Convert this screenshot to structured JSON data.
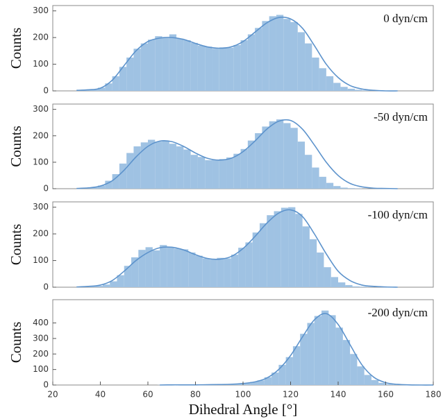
{
  "chart_data": [
    {
      "type": "histogram",
      "annotation": "0 dyn/cm",
      "ylabel": "Counts",
      "xlim": [
        20,
        180
      ],
      "ylim": [
        0,
        320
      ],
      "yticks": [
        0,
        100,
        200,
        300
      ],
      "bar_color": "#9fc2e3",
      "line_color": "#5d93cc",
      "bins": [
        30,
        33,
        36,
        39,
        42,
        45,
        48,
        51,
        54,
        57,
        60,
        63,
        66,
        69,
        72,
        75,
        78,
        81,
        84,
        87,
        90,
        93,
        96,
        99,
        102,
        105,
        108,
        111,
        114,
        117,
        120,
        123,
        126,
        129,
        132,
        135,
        138,
        141,
        144,
        147,
        150,
        153,
        156,
        159,
        162,
        165
      ],
      "counts": [
        2,
        4,
        6,
        12,
        28,
        55,
        90,
        125,
        158,
        178,
        192,
        205,
        198,
        212,
        196,
        190,
        180,
        170,
        166,
        158,
        163,
        162,
        172,
        190,
        212,
        236,
        262,
        280,
        285,
        270,
        258,
        220,
        178,
        125,
        85,
        55,
        30,
        15,
        8,
        4,
        2,
        1,
        1,
        0,
        0
      ],
      "curve": {
        "x": [
          30,
          35,
          40,
          45,
          50,
          55,
          60,
          65,
          70,
          75,
          80,
          85,
          90,
          95,
          100,
          105,
          110,
          115,
          120,
          125,
          130,
          135,
          140,
          145,
          150,
          155,
          160,
          165
        ],
        "values": [
          2,
          4,
          10,
          40,
          95,
          150,
          185,
          198,
          200,
          193,
          178,
          165,
          160,
          165,
          185,
          220,
          255,
          275,
          270,
          235,
          170,
          100,
          50,
          20,
          7,
          2,
          0,
          0
        ]
      }
    },
    {
      "type": "histogram",
      "annotation": "-50 dyn/cm",
      "ylabel": "Counts",
      "xlim": [
        20,
        180
      ],
      "ylim": [
        0,
        320
      ],
      "yticks": [
        0,
        100,
        200,
        300
      ],
      "bar_color": "#9fc2e3",
      "line_color": "#5d93cc",
      "bins": [
        30,
        33,
        36,
        39,
        42,
        45,
        48,
        51,
        54,
        57,
        60,
        63,
        66,
        69,
        72,
        75,
        78,
        81,
        84,
        87,
        90,
        93,
        96,
        99,
        102,
        105,
        108,
        111,
        114,
        117,
        120,
        123,
        126,
        129,
        132,
        135,
        138,
        141,
        144,
        147,
        150,
        153,
        156,
        159,
        162,
        165
      ],
      "counts": [
        1,
        2,
        5,
        12,
        30,
        55,
        95,
        135,
        160,
        175,
        185,
        178,
        182,
        170,
        160,
        148,
        128,
        120,
        108,
        110,
        112,
        118,
        132,
        150,
        182,
        210,
        235,
        255,
        262,
        248,
        230,
        178,
        128,
        80,
        45,
        22,
        10,
        4,
        2,
        1,
        0,
        0,
        0,
        0,
        0
      ],
      "curve": {
        "x": [
          30,
          35,
          40,
          45,
          50,
          55,
          60,
          65,
          70,
          75,
          80,
          85,
          90,
          95,
          100,
          105,
          110,
          115,
          120,
          125,
          130,
          135,
          140,
          145,
          150,
          155,
          160,
          165
        ],
        "values": [
          1,
          3,
          10,
          30,
          70,
          120,
          160,
          180,
          178,
          160,
          135,
          115,
          108,
          115,
          140,
          180,
          225,
          255,
          258,
          225,
          165,
          100,
          50,
          20,
          7,
          2,
          1,
          0
        ]
      }
    },
    {
      "type": "histogram",
      "annotation": "-100 dyn/cm",
      "ylabel": "Counts",
      "xlim": [
        20,
        180
      ],
      "ylim": [
        0,
        320
      ],
      "yticks": [
        0,
        100,
        200,
        300
      ],
      "bar_color": "#9fc2e3",
      "line_color": "#5d93cc",
      "bins": [
        32,
        35,
        38,
        41,
        44,
        47,
        50,
        53,
        56,
        59,
        62,
        65,
        68,
        71,
        74,
        77,
        80,
        83,
        86,
        89,
        92,
        95,
        98,
        101,
        104,
        107,
        110,
        113,
        116,
        119,
        122,
        125,
        128,
        131,
        134,
        137,
        140,
        143,
        146,
        149,
        152,
        155,
        158,
        161,
        164,
        167
      ],
      "counts": [
        1,
        3,
        5,
        10,
        22,
        45,
        80,
        112,
        140,
        150,
        138,
        158,
        150,
        145,
        142,
        130,
        118,
        108,
        104,
        110,
        108,
        122,
        148,
        168,
        205,
        240,
        270,
        285,
        298,
        300,
        275,
        228,
        180,
        130,
        75,
        38,
        18,
        8,
        3,
        2,
        1,
        0,
        0,
        0,
        0
      ],
      "curve": {
        "x": [
          30,
          35,
          40,
          45,
          50,
          55,
          60,
          65,
          70,
          75,
          80,
          85,
          90,
          95,
          100,
          105,
          110,
          115,
          120,
          125,
          130,
          135,
          140,
          145,
          150,
          155,
          160,
          165
        ],
        "values": [
          1,
          3,
          8,
          25,
          60,
          100,
          130,
          148,
          150,
          140,
          122,
          108,
          105,
          115,
          145,
          190,
          240,
          278,
          290,
          265,
          200,
          125,
          60,
          25,
          8,
          3,
          1,
          0
        ]
      }
    },
    {
      "type": "histogram",
      "annotation": "-200 dyn/cm",
      "ylabel": "Counts",
      "xlabel": "Dihedral Angle [°]",
      "xlim": [
        20,
        180
      ],
      "ylim": [
        0,
        550
      ],
      "xticks": [
        20,
        40,
        60,
        80,
        100,
        120,
        140,
        160,
        180
      ],
      "yticks": [
        0,
        100,
        200,
        300,
        400
      ],
      "bar_color": "#9fc2e3",
      "line_color": "#5d93cc",
      "bins": [
        64,
        67,
        70,
        73,
        76,
        79,
        82,
        85,
        88,
        91,
        94,
        97,
        100,
        103,
        106,
        109,
        112,
        115,
        118,
        121,
        124,
        127,
        130,
        133,
        136,
        139,
        142,
        145,
        148,
        151,
        154,
        157,
        160,
        163,
        166,
        169,
        172,
        175,
        178
      ],
      "counts": [
        1,
        1,
        1,
        1,
        1,
        1,
        2,
        2,
        3,
        3,
        5,
        7,
        12,
        20,
        30,
        50,
        80,
        130,
        180,
        250,
        330,
        400,
        445,
        480,
        450,
        370,
        290,
        200,
        120,
        65,
        32,
        14,
        6,
        3,
        1,
        1,
        0,
        0
      ],
      "curve": {
        "x": [
          65,
          70,
          75,
          80,
          85,
          90,
          95,
          100,
          105,
          110,
          115,
          120,
          125,
          130,
          135,
          140,
          145,
          150,
          155,
          160,
          165,
          170,
          175,
          180
        ],
        "values": [
          0,
          1,
          1,
          1,
          2,
          3,
          5,
          10,
          20,
          45,
          100,
          190,
          310,
          420,
          460,
          390,
          260,
          130,
          50,
          15,
          4,
          1,
          0,
          0
        ]
      }
    }
  ]
}
